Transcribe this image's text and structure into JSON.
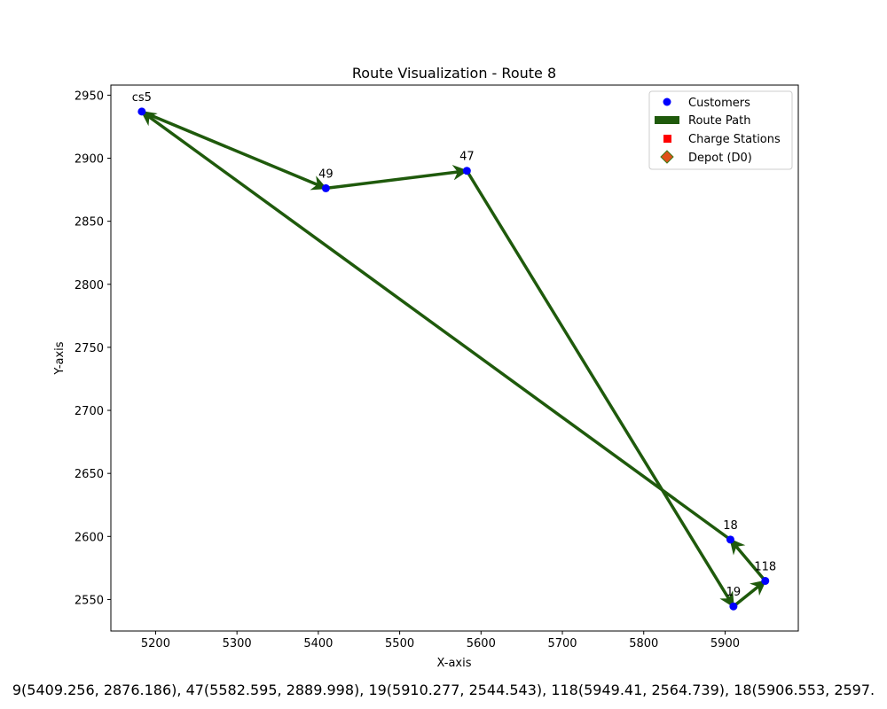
{
  "chart_data": {
    "type": "scatter",
    "title": "Route Visualization - Route 8",
    "xlabel": "X-axis",
    "ylabel": "Y-axis",
    "xlim": [
      5145,
      5990
    ],
    "ylim": [
      2525,
      2958
    ],
    "xticks": [
      5200,
      5300,
      5400,
      5500,
      5600,
      5700,
      5800,
      5900
    ],
    "yticks": [
      2550,
      2600,
      2650,
      2700,
      2750,
      2800,
      2850,
      2900,
      2950
    ],
    "grid": false,
    "legend_position": "top-right",
    "legend": [
      {
        "label": "Customers",
        "marker": "circle",
        "color": "#0000ff"
      },
      {
        "label": "Route Path",
        "marker": "bar",
        "color": "#1f5a0c"
      },
      {
        "label": "Charge Stations",
        "marker": "square",
        "color": "#ff0000"
      },
      {
        "label": "Depot (D0)",
        "marker": "diamond",
        "color": "#e0501a",
        "edge": "#3d7a17"
      }
    ],
    "customers": [
      {
        "label": "49",
        "x": 5409.256,
        "y": 2876.186
      },
      {
        "label": "47",
        "x": 5582.595,
        "y": 2889.998
      },
      {
        "label": "19",
        "x": 5910.277,
        "y": 2544.543
      },
      {
        "label": "118",
        "x": 5949.41,
        "y": 2564.739
      },
      {
        "label": "18",
        "x": 5906.553,
        "y": 2597.5
      }
    ],
    "charge_stations": [
      {
        "label": "cs5",
        "x": 5183,
        "y": 2937
      }
    ],
    "route": [
      {
        "x": 5183,
        "y": 2937
      },
      {
        "x": 5409.256,
        "y": 2876.186
      },
      {
        "x": 5582.595,
        "y": 2889.998
      },
      {
        "x": 5910.277,
        "y": 2544.543
      },
      {
        "x": 5949.41,
        "y": 2564.739
      },
      {
        "x": 5906.553,
        "y": 2597.5
      },
      {
        "x": 5183,
        "y": 2937
      }
    ],
    "route_color": "#1f5a0c",
    "footer_text": "9(5409.256, 2876.186), 47(5582.595, 2889.998), 19(5910.277, 2544.543), 118(5949.41, 2564.739), 18(5906.553, 2597."
  }
}
